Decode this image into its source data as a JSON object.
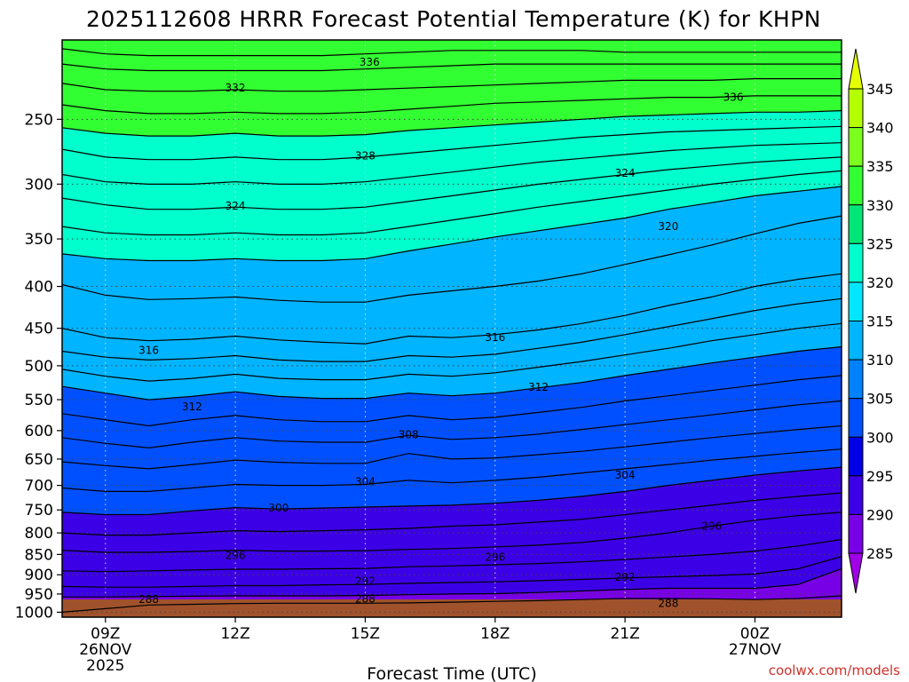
{
  "chart_data": {
    "type": "area",
    "title": "2025112608 HRRR Forecast Potential Temperature (K) for KHPN",
    "xlabel": "Forecast Time (UTC)",
    "ylabel": "",
    "credit": "coolwx.com/models",
    "x_ticks": [
      {
        "hour": 9,
        "lines": [
          "09Z",
          "26NOV",
          "2025"
        ]
      },
      {
        "hour": 12,
        "lines": [
          "12Z"
        ]
      },
      {
        "hour": 15,
        "lines": [
          "15Z"
        ]
      },
      {
        "hour": 18,
        "lines": [
          "18Z"
        ]
      },
      {
        "hour": 21,
        "lines": [
          "21Z"
        ]
      },
      {
        "hour": 24,
        "lines": [
          "00Z",
          "27NOV"
        ]
      }
    ],
    "xlim": [
      8,
      26
    ],
    "y_ticks": [
      250,
      300,
      350,
      400,
      450,
      500,
      550,
      600,
      650,
      700,
      750,
      800,
      850,
      900,
      950,
      1000
    ],
    "ylim_hpa": [
      200,
      1014
    ],
    "y_scale": "log-pressure",
    "grid": true,
    "colorbar": {
      "labels": [
        345,
        340,
        335,
        330,
        325,
        320,
        315,
        310,
        305,
        300,
        295,
        290,
        285
      ],
      "colors": [
        "#e6ff00",
        "#b4ff00",
        "#7cff1e",
        "#32ff32",
        "#00e678",
        "#00ffcc",
        "#00e6ff",
        "#00b4ff",
        "#0082ff",
        "#0050ff",
        "#0000e6",
        "#3c00e6",
        "#7800e6",
        "#a000e6"
      ]
    },
    "ground_color": "#a0522d",
    "fill_levels": [
      285,
      290,
      295,
      300,
      305,
      310,
      315,
      320,
      325,
      330,
      335,
      340,
      345
    ],
    "fill_colors": [
      "#7800e6",
      "#3c00e6",
      "#0000e6",
      "#0050ff",
      "#0082ff",
      "#00b4ff",
      "#00e6ff",
      "#00ffcc",
      "#00e678",
      "#32ff32",
      "#7cff1e",
      "#b4ff00",
      "#e6ff00"
    ],
    "profile_hours": [
      8,
      9,
      10,
      11,
      12,
      13,
      14,
      15,
      16,
      17,
      18,
      19,
      20,
      21,
      22,
      23,
      24,
      25,
      26
    ],
    "isentropes": [
      {
        "theta": 288,
        "p": [
          1000,
          990,
          980,
          978,
          976,
          975,
          975,
          975,
          974,
          972,
          970,
          968,
          965,
          962,
          962,
          963,
          965,
          962,
          955
        ]
      },
      {
        "theta": 290,
        "p": [
          958,
          958,
          957,
          956,
          955,
          955,
          955,
          954,
          952,
          950,
          949,
          946,
          942,
          938,
          935,
          935,
          935,
          925,
          885
        ]
      },
      {
        "theta": 292,
        "p": [
          930,
          932,
          932,
          930,
          928,
          928,
          926,
          925,
          922,
          920,
          918,
          915,
          912,
          908,
          905,
          902,
          898,
          885,
          855
        ]
      },
      {
        "theta": 294,
        "p": [
          890,
          892,
          890,
          888,
          886,
          886,
          885,
          884,
          880,
          878,
          875,
          872,
          868,
          862,
          856,
          850,
          842,
          830,
          815
        ]
      },
      {
        "theta": 296,
        "p": [
          840,
          845,
          845,
          843,
          840,
          842,
          842,
          841,
          838,
          836,
          832,
          828,
          822,
          812,
          800,
          785,
          772,
          762,
          755
        ]
      },
      {
        "theta": 298,
        "p": [
          800,
          805,
          805,
          800,
          795,
          797,
          795,
          793,
          790,
          785,
          782,
          776,
          770,
          760,
          750,
          740,
          730,
          722,
          715
        ]
      },
      {
        "theta": 300,
        "p": [
          755,
          760,
          760,
          752,
          745,
          748,
          746,
          744,
          742,
          740,
          736,
          730,
          722,
          712,
          700,
          690,
          680,
          672,
          665
        ]
      },
      {
        "theta": 302,
        "p": [
          705,
          712,
          712,
          705,
          698,
          700,
          700,
          698,
          690,
          695,
          690,
          684,
          676,
          668,
          660,
          652,
          645,
          638,
          632
        ]
      },
      {
        "theta": 304,
        "p": [
          655,
          662,
          668,
          660,
          652,
          656,
          658,
          658,
          640,
          650,
          648,
          642,
          636,
          628,
          620,
          612,
          605,
          598,
          592
        ]
      },
      {
        "theta": 306,
        "p": [
          612,
          622,
          630,
          620,
          612,
          618,
          620,
          620,
          608,
          615,
          612,
          606,
          598,
          590,
          582,
          574,
          566,
          558,
          552
        ]
      },
      {
        "theta": 308,
        "p": [
          572,
          582,
          592,
          582,
          575,
          582,
          585,
          585,
          575,
          582,
          578,
          570,
          562,
          552,
          544,
          536,
          528,
          520,
          514
        ]
      },
      {
        "theta": 310,
        "p": [
          530,
          540,
          550,
          545,
          538,
          545,
          548,
          548,
          540,
          544,
          540,
          532,
          524,
          514,
          505,
          496,
          488,
          480,
          474
        ]
      },
      {
        "theta": 312,
        "p": [
          505,
          515,
          522,
          518,
          512,
          518,
          520,
          520,
          512,
          515,
          510,
          502,
          494,
          485,
          476,
          466,
          458,
          450,
          444
        ]
      },
      {
        "theta": 314,
        "p": [
          480,
          488,
          492,
          490,
          486,
          492,
          494,
          494,
          486,
          488,
          484,
          476,
          468,
          458,
          448,
          438,
          428,
          420,
          414
        ]
      },
      {
        "theta": 316,
        "p": [
          450,
          462,
          466,
          464,
          460,
          465,
          468,
          470,
          460,
          462,
          458,
          452,
          444,
          434,
          422,
          412,
          400,
          392,
          386
        ]
      },
      {
        "theta": 318,
        "p": [
          398,
          410,
          415,
          414,
          412,
          416,
          418,
          418,
          410,
          405,
          400,
          394,
          386,
          376,
          366,
          356,
          345,
          335,
          328
        ]
      },
      {
        "theta": 320,
        "p": [
          365,
          370,
          372,
          372,
          370,
          372,
          372,
          370,
          362,
          355,
          348,
          342,
          336,
          330,
          322,
          316,
          310,
          306,
          302
        ]
      },
      {
        "theta": 322,
        "p": [
          338,
          344,
          346,
          346,
          344,
          346,
          346,
          344,
          338,
          332,
          326,
          320,
          315,
          310,
          305,
          300,
          296,
          292,
          289
        ]
      },
      {
        "theta": 324,
        "p": [
          312,
          318,
          322,
          322,
          320,
          322,
          322,
          320,
          315,
          310,
          305,
          300,
          296,
          292,
          288,
          285,
          282,
          280,
          278
        ]
      },
      {
        "theta": 326,
        "p": [
          292,
          298,
          300,
          300,
          298,
          300,
          300,
          298,
          294,
          290,
          286,
          282,
          279,
          276,
          273,
          271,
          269,
          268,
          267
        ]
      },
      {
        "theta": 328,
        "p": [
          272,
          278,
          280,
          280,
          278,
          280,
          280,
          278,
          275,
          272,
          269,
          266,
          263,
          261,
          259,
          258,
          257,
          256,
          255
        ]
      },
      {
        "theta": 330,
        "p": [
          256,
          260,
          262,
          262,
          260,
          262,
          262,
          261,
          258,
          256,
          254,
          252,
          250,
          248,
          247,
          246,
          245,
          245,
          244
        ]
      },
      {
        "theta": 332,
        "p": [
          240,
          244,
          246,
          246,
          245,
          246,
          246,
          245,
          243,
          241,
          239,
          238,
          237,
          236,
          235,
          235,
          234,
          234,
          234
        ]
      },
      {
        "theta": 334,
        "p": [
          226,
          230,
          231,
          231,
          230,
          231,
          231,
          230,
          229,
          228,
          227,
          226,
          225,
          224,
          224,
          224,
          223,
          223,
          223
        ]
      },
      {
        "theta": 336,
        "p": [
          214,
          217,
          218,
          218,
          218,
          218,
          218,
          217,
          216,
          215,
          214,
          214,
          214,
          214,
          214,
          214,
          214,
          214,
          214
        ]
      },
      {
        "theta": 338,
        "p": [
          205,
          208,
          209,
          209,
          209,
          209,
          209,
          208,
          207,
          206,
          206,
          206,
          206,
          207,
          207,
          207,
          207,
          207,
          207
        ]
      }
    ],
    "contour_labels": [
      {
        "text": "336",
        "hour": 15.1,
        "p": 213
      },
      {
        "text": "332",
        "hour": 12.0,
        "p": 229
      },
      {
        "text": "336",
        "hour": 23.5,
        "p": 235
      },
      {
        "text": "328",
        "hour": 15.0,
        "p": 277
      },
      {
        "text": "324",
        "hour": 21.0,
        "p": 291
      },
      {
        "text": "324",
        "hour": 12.0,
        "p": 319
      },
      {
        "text": "320",
        "hour": 22.0,
        "p": 338
      },
      {
        "text": "316",
        "hour": 10.0,
        "p": 479
      },
      {
        "text": "316",
        "hour": 18.0,
        "p": 462
      },
      {
        "text": "312",
        "hour": 19.0,
        "p": 531
      },
      {
        "text": "312",
        "hour": 11.0,
        "p": 561
      },
      {
        "text": "308",
        "hour": 16.0,
        "p": 607
      },
      {
        "text": "304",
        "hour": 21.0,
        "p": 680
      },
      {
        "text": "304",
        "hour": 15.0,
        "p": 693
      },
      {
        "text": "300",
        "hour": 13.0,
        "p": 746
      },
      {
        "text": "296",
        "hour": 23.0,
        "p": 785
      },
      {
        "text": "296",
        "hour": 12.0,
        "p": 852
      },
      {
        "text": "296",
        "hour": 18.0,
        "p": 857
      },
      {
        "text": "292",
        "hour": 15.0,
        "p": 917
      },
      {
        "text": "292",
        "hour": 21.0,
        "p": 906
      },
      {
        "text": "288",
        "hour": 10.0,
        "p": 965
      },
      {
        "text": "288",
        "hour": 15.0,
        "p": 963
      },
      {
        "text": "288",
        "hour": 22.0,
        "p": 975
      }
    ]
  }
}
